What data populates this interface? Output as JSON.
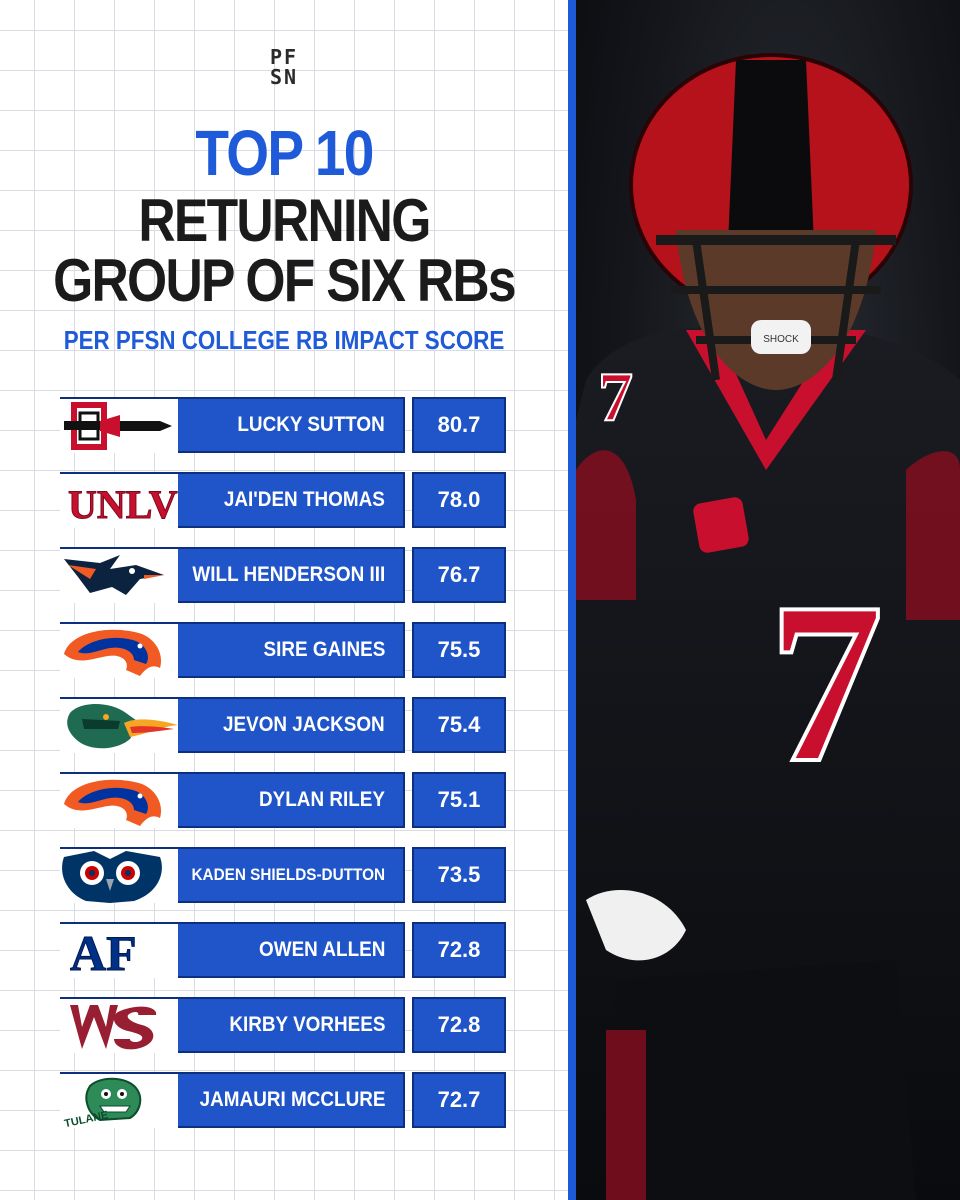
{
  "brand": {
    "logo_line1": "PF",
    "logo_line2": "SN"
  },
  "title": {
    "line1": "TOP 10",
    "line2": "RETURNING",
    "line3": "GROUP OF SIX RBs",
    "subtitle": "PER PFSN COLLEGE RB IMPACT SCORE"
  },
  "colors": {
    "accent_blue": "#1f55c9",
    "title_blue": "#1f5ad8",
    "dark_text": "#1b1b1b"
  },
  "rankings": [
    {
      "name": "LUCKY SUTTON",
      "score": "80.7",
      "logo": "san-diego-state-logo"
    },
    {
      "name": "JAI'DEN THOMAS",
      "score": "78.0",
      "logo": "unlv-logo",
      "logo_text": "UNLV"
    },
    {
      "name": "WILL HENDERSON III",
      "score": "76.7",
      "logo": "utsa-roadrunner-logo"
    },
    {
      "name": "SIRE GAINES",
      "score": "75.5",
      "logo": "boise-state-bronco-logo"
    },
    {
      "name": "JEVON JACKSON",
      "score": "75.4",
      "logo": "uab-dragon-logo"
    },
    {
      "name": "DYLAN RILEY",
      "score": "75.1",
      "logo": "boise-state-bronco-logo"
    },
    {
      "name": "KADEN SHIELDS-DUTTON",
      "score": "73.5",
      "logo": "fau-owl-logo"
    },
    {
      "name": "OWEN ALLEN",
      "score": "72.8",
      "logo": "air-force-logo",
      "logo_text": "AF"
    },
    {
      "name": "KIRBY VORHEES",
      "score": "72.8",
      "logo": "washington-state-logo"
    },
    {
      "name": "JAMAURI MCCLURE",
      "score": "72.7",
      "logo": "tulane-logo",
      "logo_text": "TULANE"
    }
  ],
  "photo": {
    "jersey_number": "7",
    "mouthguard_text": "SHOCK"
  }
}
